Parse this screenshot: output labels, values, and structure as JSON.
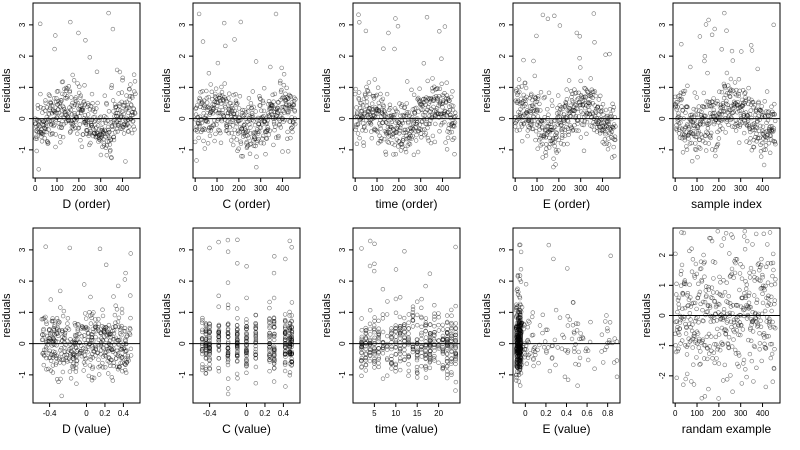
{
  "chart_data": [
    {
      "type": "scatter",
      "xlabel": "D (order)",
      "ylabel": "residuals",
      "xlim": [
        -10,
        480
      ],
      "ylim": [
        -1.9,
        3.7
      ],
      "xticks": [
        0,
        100,
        200,
        300,
        400
      ],
      "yticks": [
        -1,
        0,
        1,
        2,
        3
      ],
      "hline": 0,
      "pattern": "order",
      "seed": 11
    },
    {
      "type": "scatter",
      "xlabel": "C (order)",
      "ylabel": "residuals",
      "xlim": [
        -10,
        480
      ],
      "ylim": [
        -1.9,
        3.7
      ],
      "xticks": [
        0,
        100,
        200,
        300,
        400
      ],
      "yticks": [
        -1,
        0,
        1,
        2,
        3
      ],
      "hline": 0,
      "pattern": "order",
      "seed": 12
    },
    {
      "type": "scatter",
      "xlabel": "time (order)",
      "ylabel": "residuals",
      "xlim": [
        -10,
        480
      ],
      "ylim": [
        -1.9,
        3.7
      ],
      "xticks": [
        0,
        100,
        200,
        300,
        400
      ],
      "yticks": [
        -1,
        0,
        1,
        2,
        3
      ],
      "hline": 0,
      "pattern": "order",
      "seed": 13
    },
    {
      "type": "scatter",
      "xlabel": "E (order)",
      "ylabel": "residuals",
      "xlim": [
        -10,
        480
      ],
      "ylim": [
        -1.9,
        3.7
      ],
      "xticks": [
        0,
        100,
        200,
        300,
        400
      ],
      "yticks": [
        -1,
        0,
        1,
        2,
        3
      ],
      "hline": 0,
      "pattern": "order",
      "seed": 14
    },
    {
      "type": "scatter",
      "xlabel": "sample index",
      "ylabel": "residuals",
      "xlim": [
        -10,
        480
      ],
      "ylim": [
        -1.9,
        3.7
      ],
      "xticks": [
        0,
        100,
        200,
        300,
        400
      ],
      "yticks": [
        -1,
        0,
        1,
        2,
        3
      ],
      "hline": 0,
      "pattern": "order",
      "seed": 15
    },
    {
      "type": "scatter",
      "xlabel": "D (value)",
      "ylabel": "residuals",
      "xlim": [
        -0.58,
        0.58
      ],
      "ylim": [
        -1.9,
        3.7
      ],
      "xticks": [
        -0.4,
        0.0,
        0.2,
        0.4
      ],
      "yticks": [
        -1,
        0,
        1,
        2,
        3
      ],
      "hline": 0,
      "pattern": "spread",
      "seed": 21
    },
    {
      "type": "scatter",
      "xlabel": "C (value)",
      "ylabel": "residuals",
      "xlim": [
        -0.58,
        0.58
      ],
      "ylim": [
        -1.9,
        3.7
      ],
      "xticks": [
        -0.4,
        0.0,
        0.2,
        0.4
      ],
      "yticks": [
        -1,
        0,
        1,
        2,
        3
      ],
      "hline": 0,
      "pattern": "columns",
      "columns": [
        -0.48,
        -0.44,
        -0.4,
        -0.3,
        -0.2,
        -0.1,
        0.0,
        0.1,
        0.25,
        0.3,
        0.42,
        0.47,
        0.49
      ],
      "seed": 22
    },
    {
      "type": "scatter",
      "xlabel": "time (value)",
      "ylabel": "residuals",
      "xlim": [
        0,
        25
      ],
      "ylim": [
        -1.9,
        3.7
      ],
      "xticks": [
        5,
        10,
        15,
        20
      ],
      "yticks": [
        -1,
        0,
        1,
        2,
        3
      ],
      "hline": 0,
      "pattern": "columns",
      "columns": [
        2,
        3,
        4,
        5,
        6,
        7,
        8,
        9,
        10,
        11,
        12,
        13,
        14,
        15,
        16,
        17,
        18,
        19,
        20,
        21,
        22,
        23,
        24
      ],
      "seed": 23
    },
    {
      "type": "scatter",
      "xlabel": "E (value)",
      "ylabel": "residuals",
      "xlim": [
        -0.12,
        0.92
      ],
      "ylim": [
        -1.9,
        3.7
      ],
      "xticks": [
        0.0,
        0.2,
        0.4,
        0.6,
        0.8
      ],
      "yticks": [
        -1,
        0,
        1,
        2,
        3
      ],
      "hline": 0,
      "pattern": "skewed",
      "seed": 24
    },
    {
      "type": "scatter",
      "xlabel": "randam example",
      "ylabel": "residuals",
      "xlim": [
        -10,
        480
      ],
      "ylim": [
        -2.9,
        2.9
      ],
      "xticks": [
        0,
        100,
        200,
        300,
        400
      ],
      "yticks": [
        -2,
        -1,
        0,
        1,
        2
      ],
      "hline": 0,
      "pattern": "random",
      "seed": 25
    }
  ]
}
